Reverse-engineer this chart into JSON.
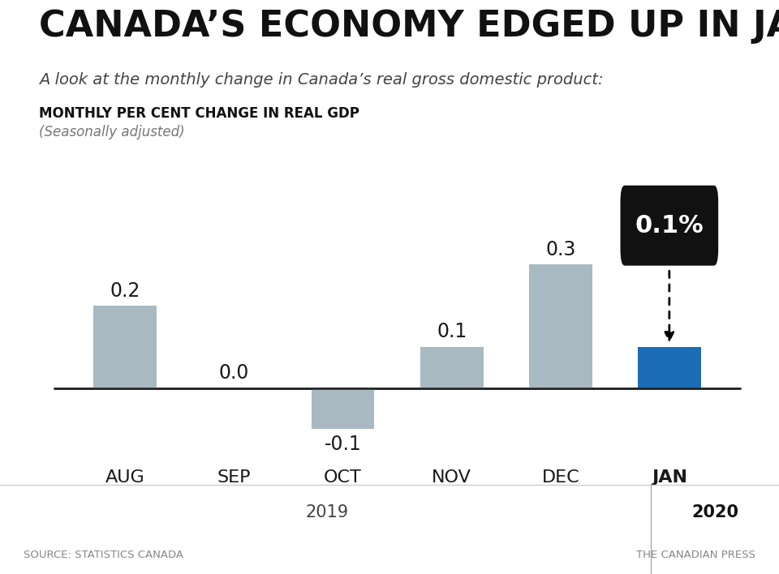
{
  "title": "CANADA’S ECONOMY EDGED UP IN JANUARY",
  "subtitle": "A look at the monthly change in Canada’s real gross domestic product:",
  "chart_label": "MONTHLY PER CENT CHANGE IN REAL GDP",
  "chart_sublabel": "(Seasonally adjusted)",
  "categories": [
    "AUG",
    "SEP",
    "OCT",
    "NOV",
    "DEC",
    "JAN"
  ],
  "values": [
    0.2,
    0.0,
    -0.1,
    0.1,
    0.3,
    0.1
  ],
  "bar_colors": [
    "#a8b9c2",
    "#a8b9c2",
    "#a8b9c2",
    "#a8b9c2",
    "#a8b9c2",
    "#1b6db5"
  ],
  "highlight_value": "0.1%",
  "year_2019_label": "2019",
  "year_2020_label": "2020",
  "source_left": "SOURCE: STATISTICS CANADA",
  "source_right": "THE CANADIAN PRESS",
  "ylim": [
    -0.18,
    0.42
  ],
  "background_color": "#ffffff",
  "title_fontsize": 32,
  "subtitle_fontsize": 14,
  "chart_label_fontsize": 12,
  "value_label_fontsize": 17,
  "tick_fontsize": 16
}
